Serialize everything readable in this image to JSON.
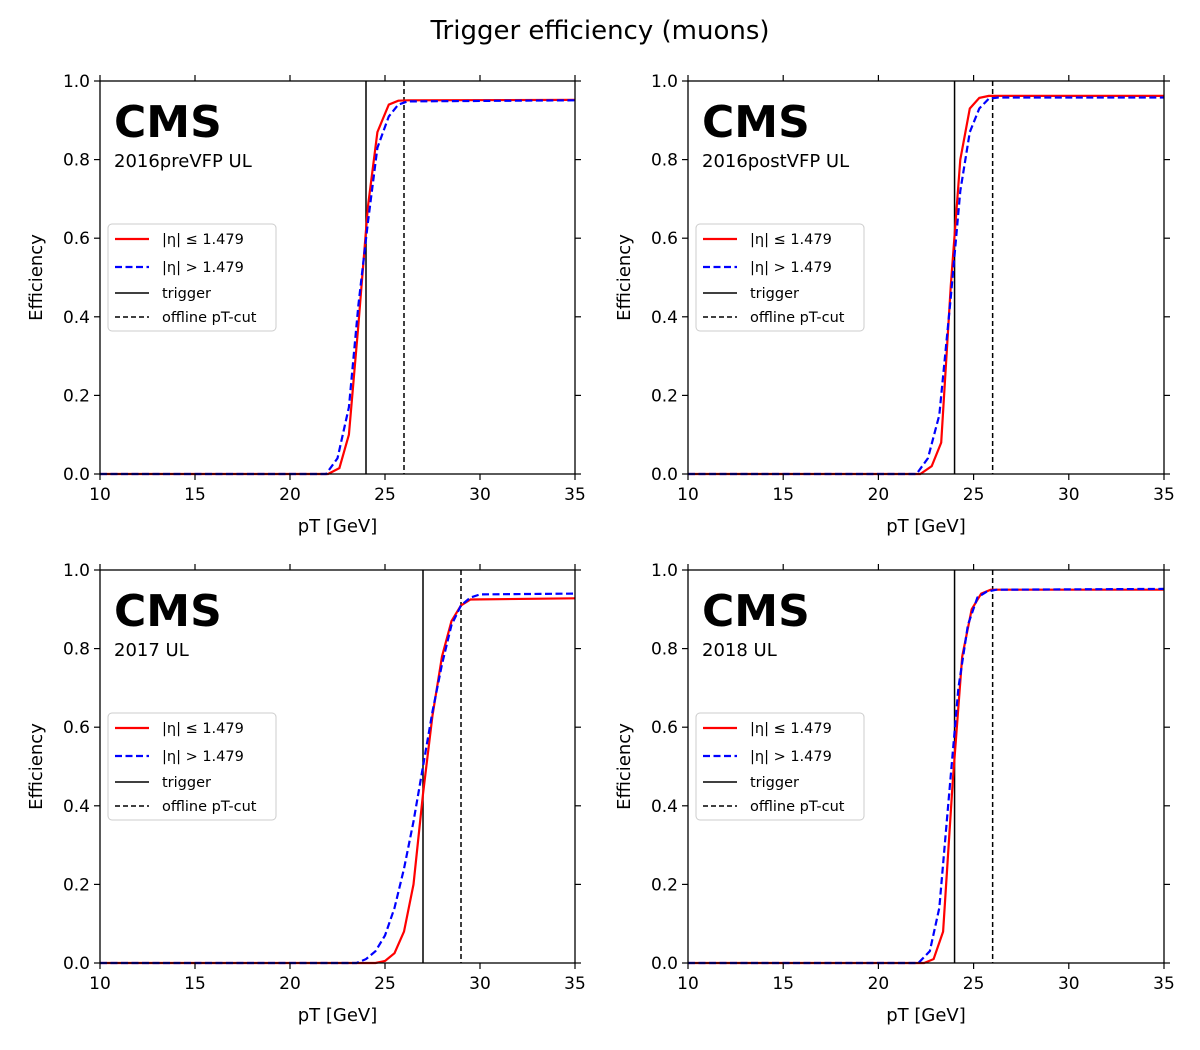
{
  "figure": {
    "title": "Trigger efficiency (muons)"
  },
  "colors": {
    "barrel": "#ff0000",
    "endcap": "#0000ff",
    "trigger": "#000000",
    "offline": "#000000"
  },
  "chart_data": [
    {
      "type": "line",
      "label": "CMS",
      "subtitle": "2016preVFP UL",
      "xlabel": "pT [GeV]",
      "ylabel": "Efficiency",
      "xlim": [
        10,
        35
      ],
      "ylim": [
        0,
        1
      ],
      "xticks": [
        10,
        15,
        20,
        25,
        30,
        35
      ],
      "yticks": [
        0.0,
        0.2,
        0.4,
        0.6,
        0.8,
        1.0
      ],
      "grid": false,
      "legend": "center-left",
      "trigger": 24,
      "offline_cut": 26,
      "series": [
        {
          "name": "|η| ≤ 1.479",
          "style": "solid",
          "color": "#ff0000",
          "x": [
            10,
            22,
            22.6,
            23.1,
            23.6,
            24.1,
            24.6,
            25.2,
            25.7,
            26.2,
            35
          ],
          "y": [
            0,
            0,
            0.015,
            0.1,
            0.38,
            0.68,
            0.87,
            0.94,
            0.95,
            0.951,
            0.952
          ]
        },
        {
          "name": "|η| > 1.479",
          "style": "dashed",
          "color": "#0000ff",
          "x": [
            10,
            21.9,
            22.5,
            23.1,
            23.6,
            24.1,
            24.6,
            25.2,
            25.7,
            26.2,
            35
          ],
          "y": [
            0,
            0,
            0.04,
            0.17,
            0.43,
            0.64,
            0.83,
            0.91,
            0.94,
            0.948,
            0.951
          ]
        }
      ]
    },
    {
      "type": "line",
      "label": "CMS",
      "subtitle": "2016postVFP UL",
      "xlabel": "pT [GeV]",
      "ylabel": "Efficiency",
      "xlim": [
        10,
        35
      ],
      "ylim": [
        0,
        1
      ],
      "xticks": [
        10,
        15,
        20,
        25,
        30,
        35
      ],
      "yticks": [
        0.0,
        0.2,
        0.4,
        0.6,
        0.8,
        1.0
      ],
      "grid": false,
      "legend": "center-left",
      "trigger": 24,
      "offline_cut": 26,
      "series": [
        {
          "name": "|η| ≤ 1.479",
          "style": "solid",
          "color": "#ff0000",
          "x": [
            10,
            22.2,
            22.8,
            23.3,
            23.8,
            24.3,
            24.8,
            25.3,
            25.8,
            35
          ],
          "y": [
            0,
            0,
            0.02,
            0.08,
            0.48,
            0.8,
            0.93,
            0.957,
            0.962,
            0.962
          ]
        },
        {
          "name": "|η| > 1.479",
          "style": "dashed",
          "color": "#0000ff",
          "x": [
            10,
            22.0,
            22.6,
            23.2,
            23.8,
            24.3,
            24.8,
            25.3,
            25.8,
            26.3,
            35
          ],
          "y": [
            0,
            0,
            0.04,
            0.15,
            0.45,
            0.72,
            0.87,
            0.93,
            0.955,
            0.958,
            0.958
          ]
        }
      ]
    },
    {
      "type": "line",
      "label": "CMS",
      "subtitle": "2017 UL",
      "xlabel": "pT [GeV]",
      "ylabel": "Efficiency",
      "xlim": [
        10,
        35
      ],
      "ylim": [
        0,
        1
      ],
      "xticks": [
        10,
        15,
        20,
        25,
        30,
        35
      ],
      "yticks": [
        0.0,
        0.2,
        0.4,
        0.6,
        0.8,
        1.0
      ],
      "grid": false,
      "legend": "center-left",
      "trigger": 27,
      "offline_cut": 29,
      "series": [
        {
          "name": "|η| ≤ 1.479",
          "style": "solid",
          "color": "#ff0000",
          "x": [
            10,
            24.5,
            25.0,
            25.5,
            26.0,
            26.5,
            27.0,
            27.5,
            28.0,
            28.5,
            29.0,
            29.5,
            35
          ],
          "y": [
            0,
            0,
            0.005,
            0.025,
            0.08,
            0.2,
            0.43,
            0.63,
            0.78,
            0.87,
            0.91,
            0.925,
            0.928
          ]
        },
        {
          "name": "|η| > 1.479",
          "style": "dashed",
          "color": "#0000ff",
          "x": [
            10,
            23.5,
            24.0,
            24.5,
            25.0,
            25.5,
            26.0,
            26.5,
            27.0,
            27.5,
            28.0,
            28.5,
            29.0,
            29.5,
            30.0,
            35
          ],
          "y": [
            0,
            0,
            0.01,
            0.03,
            0.07,
            0.14,
            0.24,
            0.36,
            0.5,
            0.64,
            0.76,
            0.86,
            0.91,
            0.93,
            0.938,
            0.94
          ]
        }
      ]
    },
    {
      "type": "line",
      "label": "CMS",
      "subtitle": "2018 UL",
      "xlabel": "pT [GeV]",
      "ylabel": "Efficiency",
      "xlim": [
        10,
        35
      ],
      "ylim": [
        0,
        1
      ],
      "xticks": [
        10,
        15,
        20,
        25,
        30,
        35
      ],
      "yticks": [
        0.0,
        0.2,
        0.4,
        0.6,
        0.8,
        1.0
      ],
      "grid": false,
      "legend": "center-left",
      "trigger": 24,
      "offline_cut": 26,
      "series": [
        {
          "name": "|η| ≤ 1.479",
          "style": "solid",
          "color": "#ff0000",
          "x": [
            10,
            22.4,
            22.9,
            23.4,
            23.9,
            24.4,
            24.9,
            25.4,
            25.9,
            35
          ],
          "y": [
            0,
            0,
            0.01,
            0.08,
            0.46,
            0.78,
            0.9,
            0.94,
            0.95,
            0.95
          ]
        },
        {
          "name": "|η| > 1.479",
          "style": "dashed",
          "color": "#0000ff",
          "x": [
            10,
            22.1,
            22.7,
            23.2,
            23.7,
            24.2,
            24.7,
            25.2,
            25.7,
            26.2,
            35
          ],
          "y": [
            0,
            0,
            0.03,
            0.14,
            0.42,
            0.7,
            0.86,
            0.93,
            0.945,
            0.95,
            0.952
          ]
        }
      ]
    }
  ],
  "legend_labels": {
    "barrel": "|η| ≤ 1.479",
    "endcap": "|η| > 1.479",
    "trigger": "trigger",
    "offline": "offline pT-cut"
  }
}
